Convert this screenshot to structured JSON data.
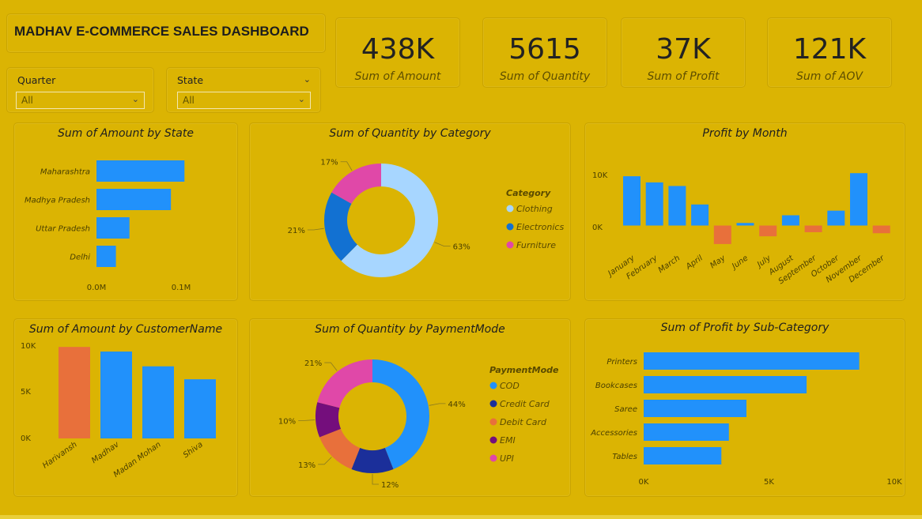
{
  "dashboard": {
    "title": "MADHAV E-COMMERCE SALES DASHBOARD"
  },
  "filters": [
    {
      "label": "Quarter",
      "value": "All"
    },
    {
      "label": "State",
      "value": "All"
    }
  ],
  "kpis": [
    {
      "value": "438K",
      "label": "Sum of Amount"
    },
    {
      "value": "5615",
      "label": "Sum of Quantity"
    },
    {
      "value": "37K",
      "label": "Sum of Profit"
    },
    {
      "value": "121K",
      "label": "Sum of AOV"
    }
  ],
  "colors": {
    "background": "#dbb403",
    "blue": "#2191fb",
    "orange": "#e8703b"
  },
  "chart_data": [
    {
      "type": "bar",
      "orientation": "horizontal",
      "title": "Sum of Amount by State",
      "categories": [
        "Maharashtra",
        "Madhya Pradesh",
        "Uttar Pradesh",
        "Delhi"
      ],
      "values": [
        0.104,
        0.088,
        0.039,
        0.023
      ],
      "xticks": [
        "0.0M",
        "0.1M"
      ],
      "xlim": [
        0,
        0.1
      ]
    },
    {
      "type": "pie",
      "donut": true,
      "title": "Sum of Quantity by Category",
      "legend_title": "Category",
      "legend_position": "right",
      "categories": [
        "Clothing",
        "Electronics",
        "Furniture"
      ],
      "values": [
        63,
        21,
        17
      ],
      "labels": [
        "63%",
        "21%",
        "17%"
      ],
      "colors": [
        "#a7d6ff",
        "#1271d2",
        "#e048a8"
      ]
    },
    {
      "type": "bar",
      "title": "Profit by Month",
      "categories": [
        "January",
        "February",
        "March",
        "April",
        "May",
        "June",
        "July",
        "August",
        "September",
        "October",
        "November",
        "December"
      ],
      "values": [
        9600,
        8400,
        7700,
        4100,
        -3600,
        500,
        -2100,
        2000,
        -1300,
        2900,
        10200,
        -1500
      ],
      "yticks": [
        "10K",
        "0K"
      ],
      "ylim": [
        -5000,
        11000
      ],
      "colors": {
        "positive": "#2191fb",
        "negative": "#e8703b"
      }
    },
    {
      "type": "bar",
      "title": "Sum of Amount by CustomerName",
      "categories": [
        "Harivansh",
        "Madhav",
        "Madan Mohan",
        "Shiva"
      ],
      "values": [
        9900,
        9400,
        7800,
        6400
      ],
      "colors": [
        "#e8703b",
        "#2191fb",
        "#2191fb",
        "#2191fb"
      ],
      "yticks": [
        "10K",
        "5K",
        "0K"
      ],
      "ylim": [
        0,
        10000
      ]
    },
    {
      "type": "pie",
      "donut": true,
      "title": "Sum of Quantity by PaymentMode",
      "legend_title": "PaymentMode",
      "legend_position": "right",
      "categories": [
        "COD",
        "Credit Card",
        "Debit Card",
        "EMI",
        "UPI"
      ],
      "values": [
        44,
        12,
        13,
        10,
        21
      ],
      "labels": [
        "44%",
        "12%",
        "13%",
        "10%",
        "21%"
      ],
      "colors": [
        "#2191fb",
        "#1b2f9a",
        "#e8703b",
        "#740e7c",
        "#e048a8"
      ]
    },
    {
      "type": "bar",
      "orientation": "horizontal",
      "title": "Sum of Profit by Sub-Category",
      "categories": [
        "Printers",
        "Bookcases",
        "Saree",
        "Accessories",
        "Tables"
      ],
      "values": [
        8600,
        6500,
        4100,
        3400,
        3100
      ],
      "xticks": [
        "0K",
        "5K",
        "10K"
      ],
      "xlim": [
        0,
        10000
      ]
    }
  ]
}
